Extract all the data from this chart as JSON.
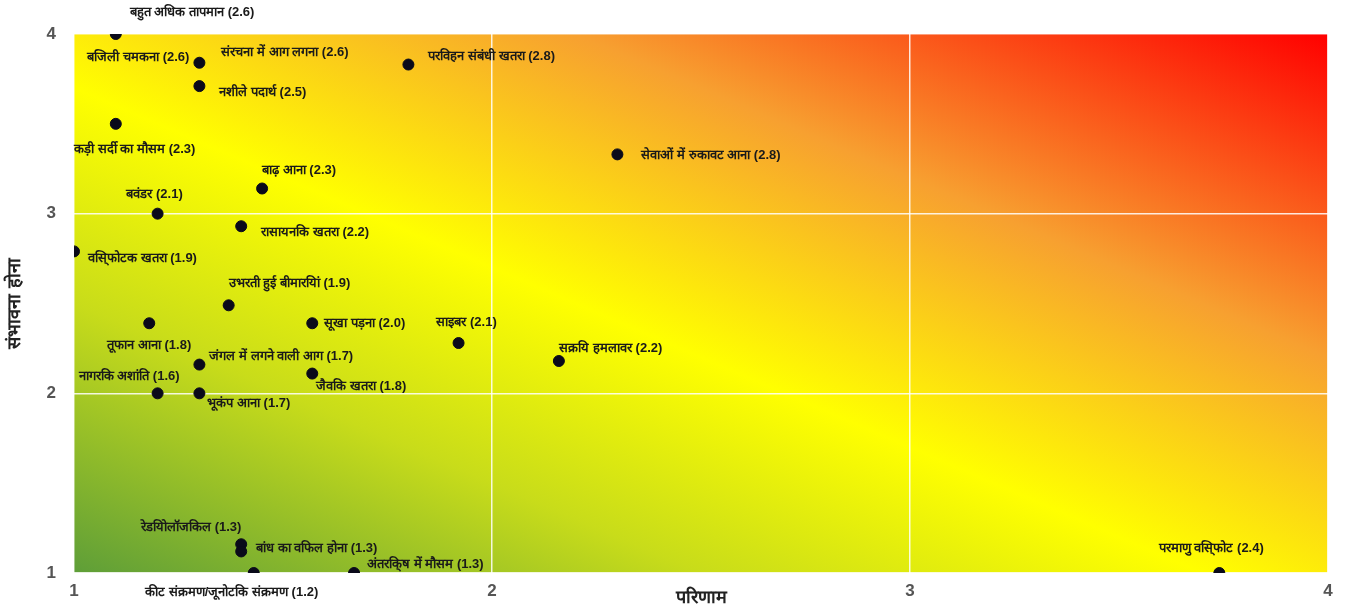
{
  "chart_data": {
    "type": "scatter",
    "xlabel": "परिणाम",
    "ylabel": "संभावना होना",
    "xlim": [
      1,
      4
    ],
    "ylim": [
      1,
      4
    ],
    "xticks": [
      1,
      2,
      3,
      4
    ],
    "yticks": [
      1,
      2,
      3,
      4
    ],
    "grid": true,
    "marker": "circle",
    "series": [
      {
        "color": "#0a0a1a",
        "x": [
          1.1,
          1.3,
          null,
          1.3,
          1.8,
          1.1,
          2.3,
          1.45,
          1.2,
          1.4,
          1.0,
          1.37,
          1.18,
          1.57,
          1.92,
          2.16,
          1.3,
          1.57,
          1.2,
          1.3,
          1.4,
          1.4,
          1.43,
          1.67,
          3.74
        ],
        "values": [
          4.0,
          3.84,
          null,
          3.71,
          3.83,
          3.5,
          3.33,
          3.14,
          3.0,
          2.93,
          2.79,
          2.49,
          2.39,
          2.39,
          2.28,
          2.18,
          2.16,
          2.11,
          2.0,
          2.0,
          1.16,
          1.12,
          1.0,
          1.0,
          1.0
        ]
      }
    ],
    "annotations": [
      {
        "text": "बहुत अधिक तापमान (2.6)",
        "x": 1.1,
        "y": 4.0
      },
      {
        "text": "बजिली चमकना (2.6)",
        "x": 1.3,
        "y": 3.84
      },
      {
        "text": "संरचना में आग लगना (2.6)",
        "x": 1.3,
        "y": 3.84
      },
      {
        "text": "नशीले पदार्थ (2.5)",
        "x": 1.3,
        "y": 3.71
      },
      {
        "text": "परविहन संबंधी खतरा (2.8)",
        "x": 1.8,
        "y": 3.83
      },
      {
        "text": "कड़ी सर्दी का मौसम (2.3)",
        "x": 1.1,
        "y": 3.5
      },
      {
        "text": "सेवाओं में रुकावट आना (2.8)",
        "x": 2.3,
        "y": 3.33
      },
      {
        "text": "बाढ़ आना (2.3)",
        "x": 1.45,
        "y": 3.14
      },
      {
        "text": "बवंडर (2.1)",
        "x": 1.2,
        "y": 3.0
      },
      {
        "text": "रासायनकि खतरा (2.2)",
        "x": 1.4,
        "y": 2.93
      },
      {
        "text": "वसि्फोटक खतरा (1.9)",
        "x": 1.0,
        "y": 2.79
      },
      {
        "text": "उभरती हुई बीमारयिां (1.9)",
        "x": 1.37,
        "y": 2.49
      },
      {
        "text": "तूफान आना (1.8)",
        "x": 1.18,
        "y": 2.39
      },
      {
        "text": "सूखा पड़ना (2.0)",
        "x": 1.57,
        "y": 2.39
      },
      {
        "text": "साइबर (2.1)",
        "x": 1.92,
        "y": 2.28
      },
      {
        "text": "सक्रयि हमलावर (2.2)",
        "x": 2.16,
        "y": 2.18
      },
      {
        "text": "जंगल में लगने वाली आग (1.7)",
        "x": 1.3,
        "y": 2.16
      },
      {
        "text": "जैवकि खतरा (1.8)",
        "x": 1.57,
        "y": 2.11
      },
      {
        "text": "नागरकि अशांति (1.6)",
        "x": 1.2,
        "y": 2.0
      },
      {
        "text": "भूकंप आना (1.7)",
        "x": 1.3,
        "y": 2.0
      },
      {
        "text": "रेडयिोलॉजकिल (1.3)",
        "x": 1.4,
        "y": 1.16
      },
      {
        "text": "बांध का वफिल होना (1.3)",
        "x": 1.4,
        "y": 1.12
      },
      {
        "text": "कीट संक्रमण/जूनोटकि संक्रमण (1.2)",
        "x": 1.43,
        "y": 1.0
      },
      {
        "text": "अंतरकि्ष में मौसम (1.3)",
        "x": 1.67,
        "y": 1.0
      },
      {
        "text": "परमाणु वसि्फोट (2.4)",
        "x": 3.74,
        "y": 1.0
      }
    ]
  }
}
